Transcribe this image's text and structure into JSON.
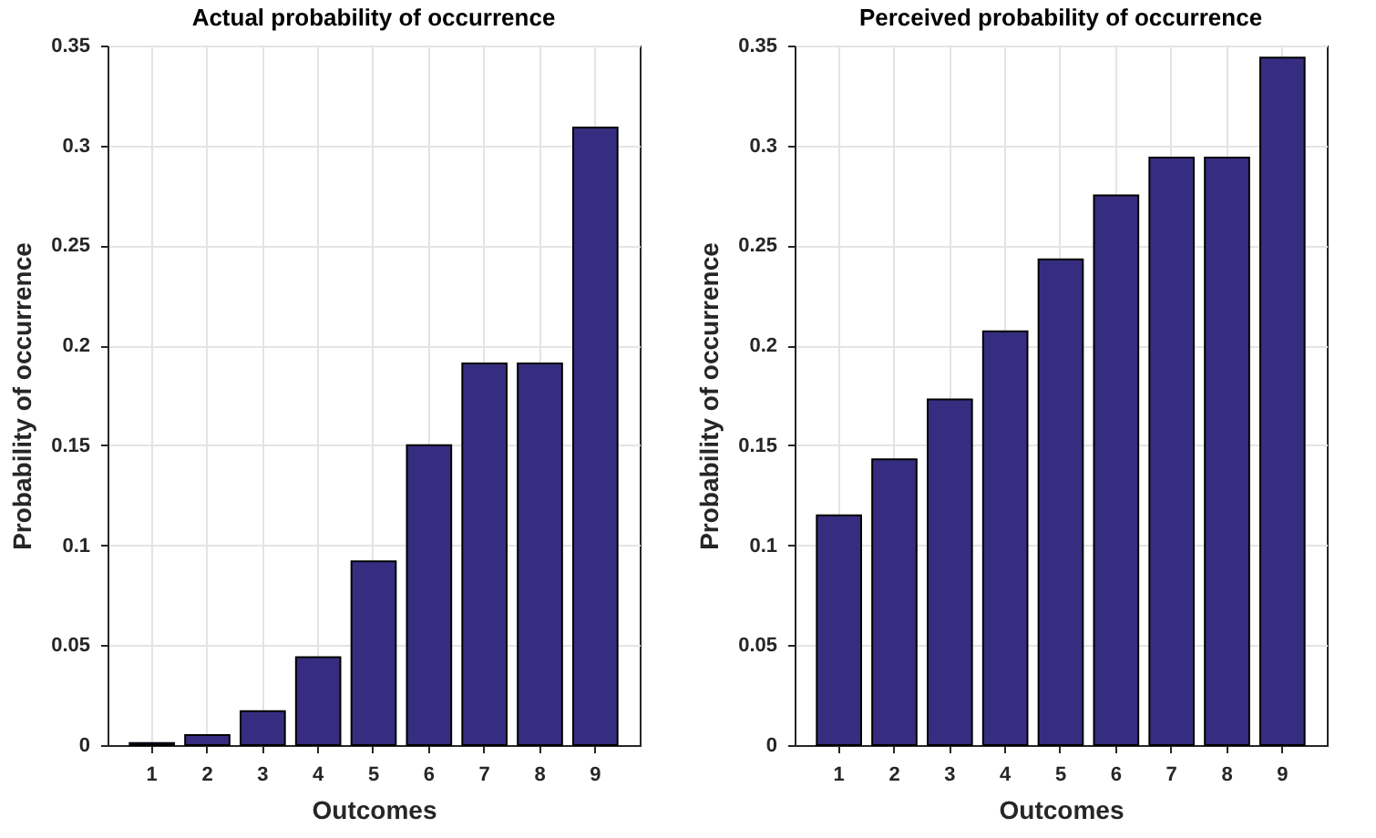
{
  "chart_data": [
    {
      "type": "bar",
      "title": "Actual probability of occurrence",
      "xlabel": "Outcomes",
      "ylabel": "Probability of occurrence",
      "categories": [
        "1",
        "2",
        "3",
        "4",
        "5",
        "6",
        "7",
        "8",
        "9"
      ],
      "series": [
        {
          "color": "#372d80",
          "values": [
            0.001,
            0.005,
            0.017,
            0.044,
            0.092,
            0.15,
            0.191,
            0.191,
            0.309
          ]
        }
      ],
      "ylim": [
        0,
        0.35
      ],
      "yticks": [
        0,
        0.05,
        0.1,
        0.15,
        0.2,
        0.25,
        0.3,
        0.35
      ],
      "grid": true,
      "legend": false
    },
    {
      "type": "bar",
      "title": "Perceived probability of occurrence",
      "xlabel": "Outcomes",
      "ylabel": "Probability of occurrence",
      "categories": [
        "1",
        "2",
        "3",
        "4",
        "5",
        "6",
        "7",
        "8",
        "9"
      ],
      "series": [
        {
          "color": "#372d80",
          "values": [
            0.115,
            0.143,
            0.173,
            0.207,
            0.243,
            0.275,
            0.294,
            0.294,
            0.344
          ]
        }
      ],
      "ylim": [
        0,
        0.35
      ],
      "yticks": [
        0,
        0.05,
        0.1,
        0.15,
        0.2,
        0.25,
        0.3,
        0.35
      ],
      "grid": true,
      "legend": false
    }
  ]
}
